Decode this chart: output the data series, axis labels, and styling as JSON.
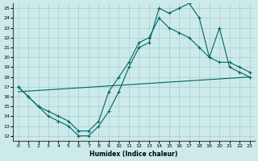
{
  "xlabel": "Humidex (Indice chaleur)",
  "bg_color": "#cceaea",
  "grid_color": "#aacccc",
  "line_color": "#006666",
  "xlim": [
    -0.5,
    23.5
  ],
  "ylim": [
    11.5,
    25.5
  ],
  "xticks": [
    0,
    1,
    2,
    3,
    4,
    5,
    6,
    7,
    8,
    9,
    10,
    11,
    12,
    13,
    14,
    15,
    16,
    17,
    18,
    19,
    20,
    21,
    22,
    23
  ],
  "yticks": [
    12,
    13,
    14,
    15,
    16,
    17,
    18,
    19,
    20,
    21,
    22,
    23,
    24,
    25
  ],
  "series1_x": [
    0,
    1,
    2,
    3,
    4,
    5,
    6,
    7,
    8,
    9,
    10,
    11,
    12,
    13,
    14,
    15,
    16,
    17,
    18,
    19,
    20,
    21,
    22,
    23
  ],
  "series1_y": [
    17.0,
    16.0,
    15.0,
    14.0,
    13.5,
    13.0,
    12.0,
    12.0,
    13.0,
    14.5,
    16.5,
    19.0,
    21.0,
    21.5,
    25.0,
    24.5,
    25.0,
    25.5,
    24.0,
    20.0,
    23.0,
    19.0,
    18.5,
    18.0
  ],
  "series2_x": [
    0,
    1,
    2,
    3,
    4,
    5,
    6,
    7,
    8,
    9,
    10,
    11,
    12,
    13,
    14,
    15,
    16,
    17,
    18,
    19,
    20,
    21,
    22,
    23
  ],
  "series2_y": [
    17.0,
    16.0,
    15.0,
    14.5,
    14.0,
    13.5,
    12.5,
    12.5,
    13.5,
    16.5,
    18.0,
    19.5,
    21.5,
    22.0,
    24.0,
    23.0,
    22.5,
    22.0,
    21.0,
    20.0,
    19.5,
    19.5,
    19.0,
    18.5
  ],
  "series3_x": [
    0,
    23
  ],
  "series3_y": [
    16.5,
    18.0
  ]
}
